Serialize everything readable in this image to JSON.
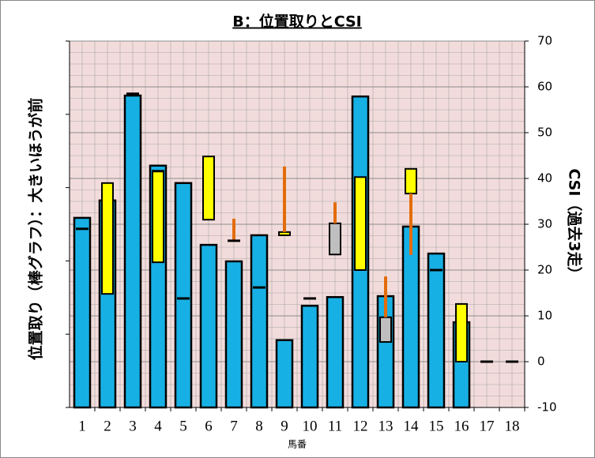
{
  "chart_data": {
    "type": "bar",
    "title": "B：位置取りとCSI",
    "x_label": "馬番",
    "y_label": "位置取り（棒グラフ）：大きいほうが前",
    "y2_label": "CSI（過去3走）",
    "categories": [
      "1",
      "2",
      "3",
      "4",
      "5",
      "6",
      "7",
      "8",
      "9",
      "10",
      "11",
      "12",
      "13",
      "14",
      "15",
      "16",
      "17",
      "18"
    ],
    "ylim": [
      -10,
      70
    ],
    "yticks": [
      -10,
      0,
      10,
      20,
      30,
      40,
      50,
      60,
      70
    ],
    "grid": true,
    "bars": {
      "color": "#17b0e4",
      "values": [
        31.4,
        35.2,
        58.1,
        42.8,
        39.0,
        25.5,
        21.9,
        27.6,
        4.7,
        12.2,
        14.1,
        57.9,
        14.3,
        29.5,
        23.6,
        8.6,
        null,
        null
      ]
    },
    "markers": {
      "color": "#000000",
      "values": [
        29.0,
        null,
        58.5,
        41.6,
        13.8,
        null,
        26.4,
        16.2,
        null,
        13.8,
        null,
        null,
        null,
        null,
        20.0,
        null,
        0,
        0
      ]
    },
    "csi_boxes": {
      "low": [
        null,
        14.8,
        null,
        21.7,
        null,
        31.0,
        null,
        null,
        27.6,
        null,
        23.4,
        20.0,
        4.3,
        36.7,
        null,
        0,
        null,
        null
      ],
      "high": [
        null,
        39.0,
        null,
        41.6,
        null,
        44.8,
        null,
        null,
        28.3,
        null,
        30.2,
        40.3,
        9.7,
        42.1,
        null,
        12.6,
        null,
        null
      ],
      "colors": [
        null,
        "#ffff00",
        null,
        "#ffff00",
        null,
        "#ffff00",
        null,
        null,
        "#ffff00",
        null,
        "#bfbfbf",
        "#ffff00",
        "#bfbfbf",
        "#ffff00",
        null,
        "#ffff00",
        null,
        null
      ]
    },
    "csi_whiskers": {
      "color": "#e36c0a",
      "low": [
        null,
        null,
        null,
        null,
        null,
        null,
        26.4,
        null,
        28.3,
        null,
        30.2,
        null,
        9.7,
        23.3,
        null,
        null,
        null,
        null
      ],
      "high": [
        null,
        null,
        null,
        null,
        null,
        null,
        31.2,
        null,
        42.6,
        null,
        34.8,
        null,
        18.6,
        36.7,
        null,
        null,
        null,
        null
      ]
    }
  }
}
